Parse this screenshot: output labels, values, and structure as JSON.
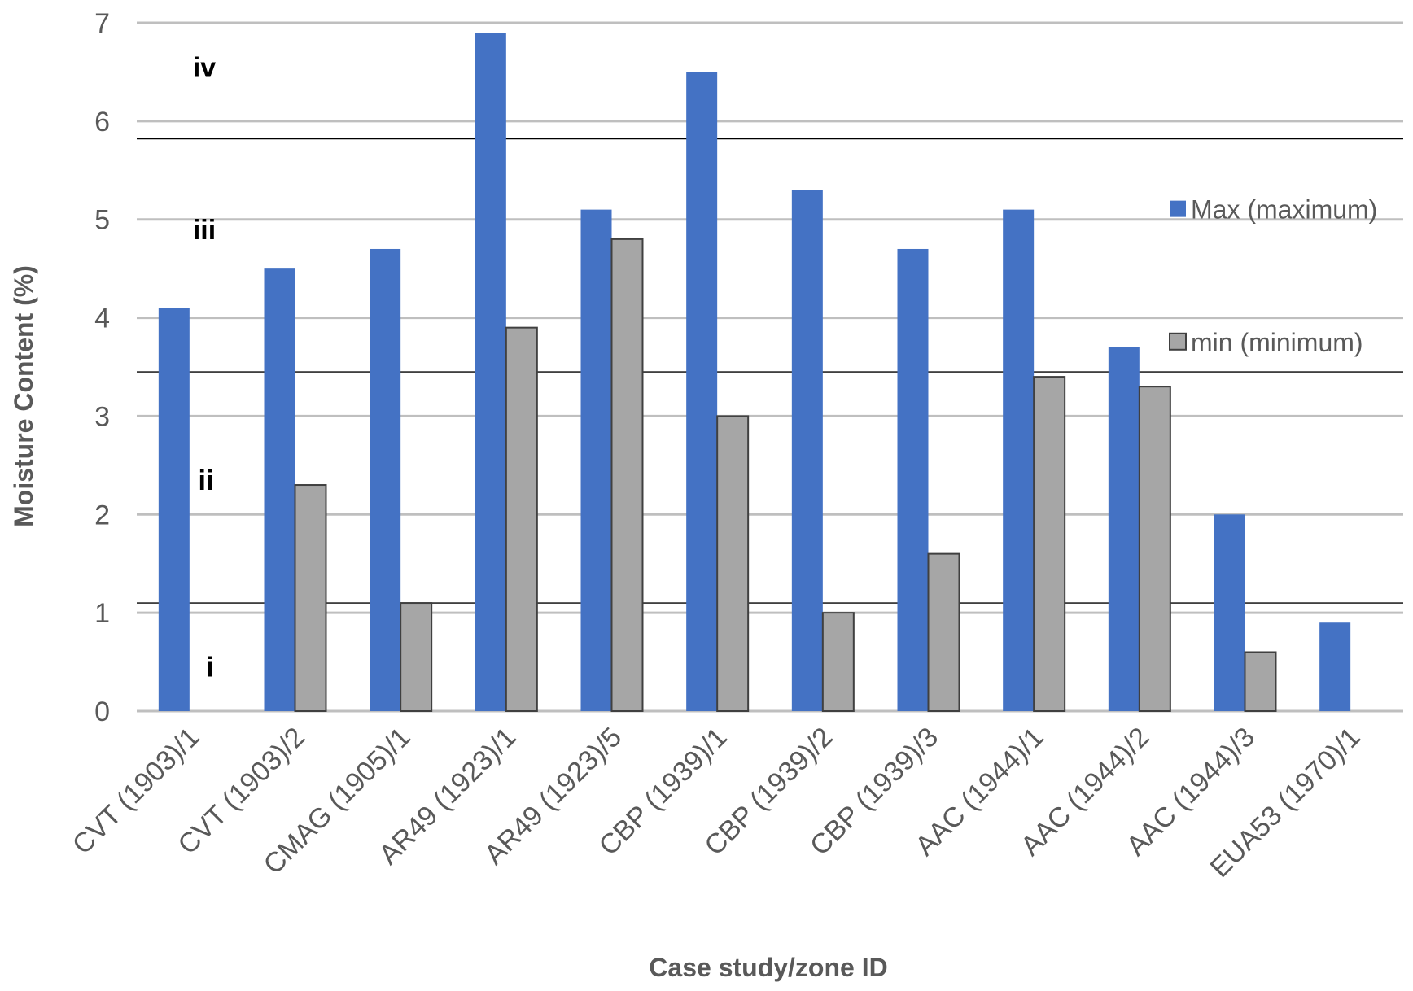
{
  "chart_data": {
    "type": "bar",
    "title": "",
    "xlabel": "Case study/zone ID",
    "ylabel": "Moisture Content (%)",
    "ylim": [
      0,
      7
    ],
    "yticks": [
      0,
      1,
      2,
      3,
      4,
      5,
      6,
      7
    ],
    "grid": true,
    "legend_position": "right",
    "categories": [
      "CVT (1903)/1",
      "CVT (1903)/2",
      "CMAG (1905)/1",
      "AR49 (1923)/1",
      "AR49 (1923)/5",
      "CBP (1939)/1",
      "CBP (1939)/2",
      "CBP (1939)/3",
      "AAC (1944)/1",
      "AAC (1944)/2",
      "AAC (1944)/3",
      "EUA53 (1970)/1"
    ],
    "series": [
      {
        "name": "Max (maximum)",
        "color": "#4472C4",
        "values": [
          4.1,
          4.5,
          4.7,
          6.9,
          5.1,
          6.5,
          5.3,
          4.7,
          5.1,
          3.7,
          2.0,
          0.9
        ]
      },
      {
        "name": "min (minimum)",
        "color": "#A6A6A6",
        "values": [
          null,
          2.3,
          1.1,
          3.9,
          4.8,
          3.0,
          1.0,
          1.6,
          3.4,
          3.3,
          0.6,
          null
        ]
      }
    ],
    "zone_labels": [
      "i",
      "ii",
      "iii",
      "iv"
    ],
    "zone_boundaries": [
      1.1,
      3.45,
      5.82
    ]
  }
}
